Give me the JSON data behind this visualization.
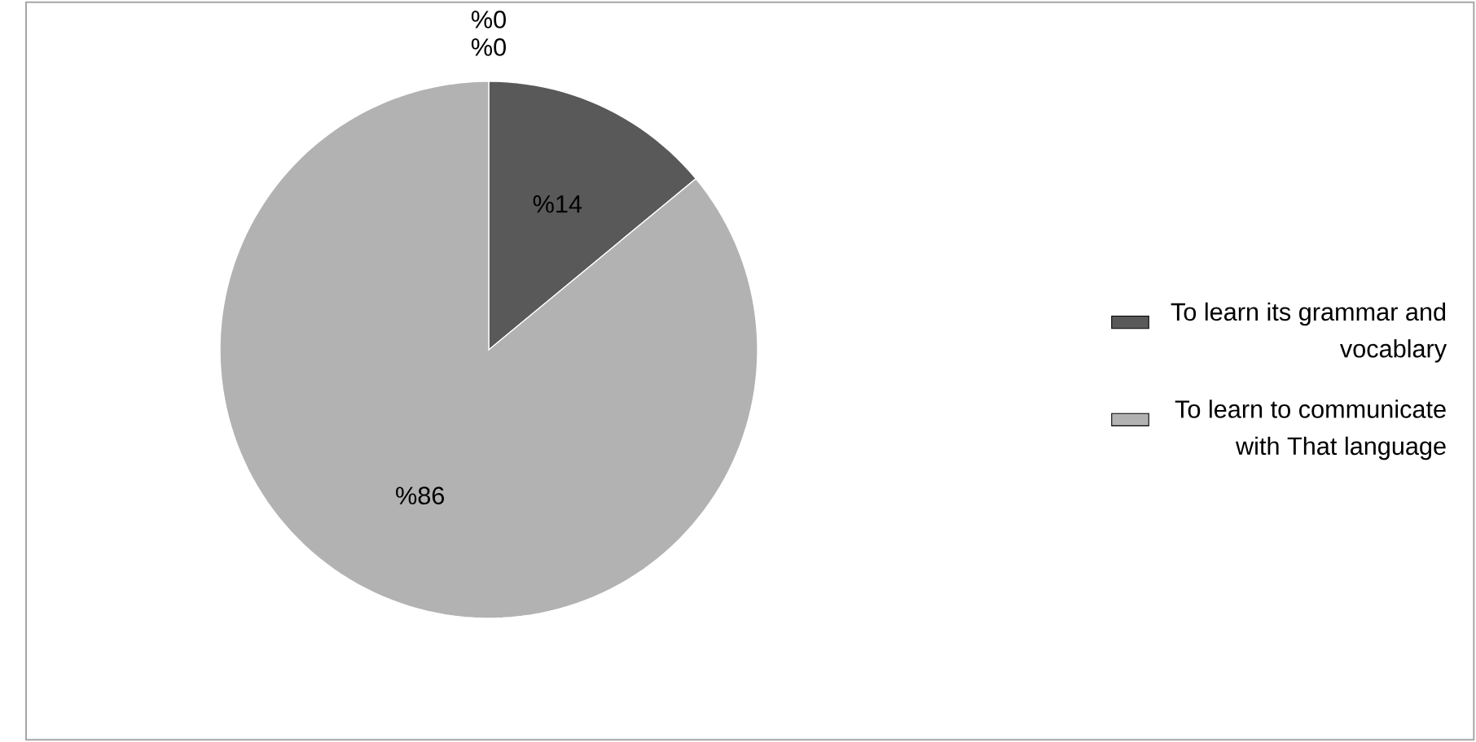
{
  "chart_data": {
    "type": "pie",
    "categories": [
      "To learn its grammar and vocablary",
      "To learn to communicate with That language",
      null,
      null
    ],
    "values": [
      14,
      86,
      0,
      0
    ],
    "colors": [
      "#595959",
      "#b2b2b2",
      "#7f7f7f",
      "#d9d9d9"
    ],
    "value_labels": [
      "%14",
      "%86",
      "%0",
      "%0"
    ],
    "legend": "right"
  }
}
